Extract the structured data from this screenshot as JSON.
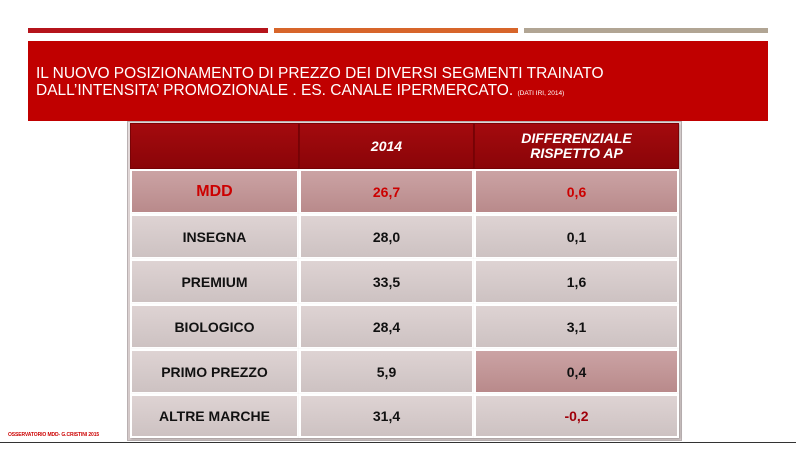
{
  "title": {
    "line1": "IL NUOVO POSIZIONAMENTO DI PREZZO DEI DIVERSI SEGMENTI TRAINATO",
    "line2": "DALL’INTENSITA’  PROMOZIONALE . ES. CANALE IPERMERCATO.",
    "source": "(DATI IRI, 2014)"
  },
  "table": {
    "headers": [
      "",
      "2014",
      "DIFFERENZIALE RISPETTO AP"
    ],
    "rows": [
      {
        "label": "MDD",
        "v2014": "26,7",
        "diff": "0,6"
      },
      {
        "label": "INSEGNA",
        "v2014": "28,0",
        "diff": "0,1"
      },
      {
        "label": "PREMIUM",
        "v2014": "33,5",
        "diff": "1,6"
      },
      {
        "label": "BIOLOGICO",
        "v2014": "28,4",
        "diff": "3,1"
      },
      {
        "label": "PRIMO PREZZO",
        "v2014": "5,9",
        "diff": "0,4"
      },
      {
        "label": "ALTRE MARCHE",
        "v2014": "31,4",
        "diff": "-0,2"
      }
    ]
  },
  "footer": "OSSERVATORIO MDD- G.CRISTINI 2015",
  "colors": {
    "accent_red": "#c00000",
    "header_dark_red": "#8a0508",
    "bar_orange": "#d7652a",
    "bar_taupe": "#b1a594"
  }
}
